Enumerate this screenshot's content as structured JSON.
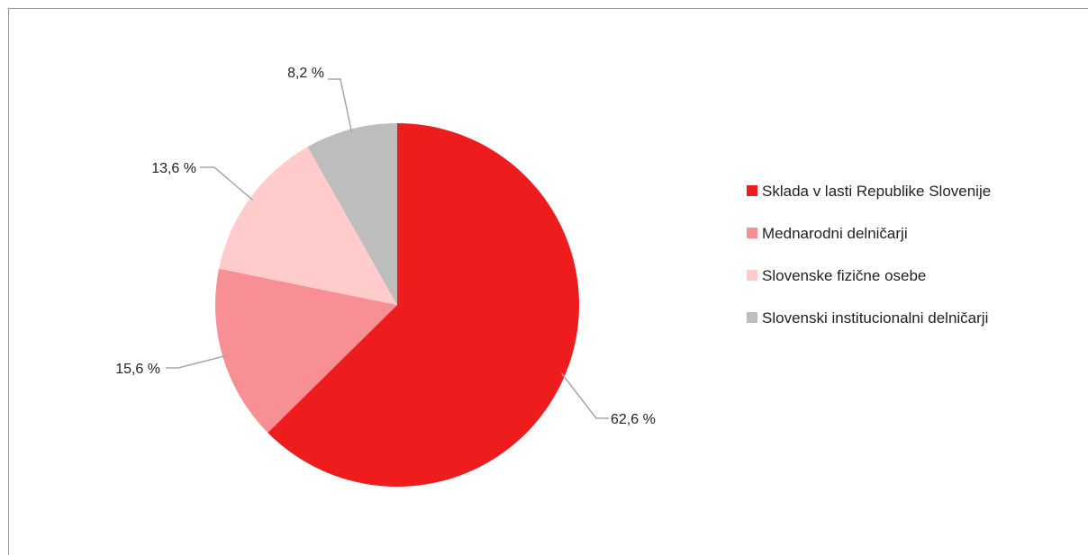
{
  "chart_data": {
    "type": "pie",
    "title": "",
    "start": "12 o'clock",
    "direction": "clockwise",
    "legend_position": "right",
    "slices": [
      {
        "label": "Sklada v lasti Republike Slovenije",
        "value": 62.6,
        "value_label": "62,6 %",
        "color": "#ee1c1d"
      },
      {
        "label": "Mednarodni delničarji",
        "value": 15.6,
        "value_label": "15,6 %",
        "color": "#f78f94"
      },
      {
        "label": "Slovenske fizične osebe",
        "value": 13.6,
        "value_label": "13,6 %",
        "color": "#ffcccb"
      },
      {
        "label": "Slovenski institucionalni delničarji",
        "value": 8.2,
        "value_label": "8,2 %",
        "color": "#bdbdbd"
      }
    ]
  }
}
